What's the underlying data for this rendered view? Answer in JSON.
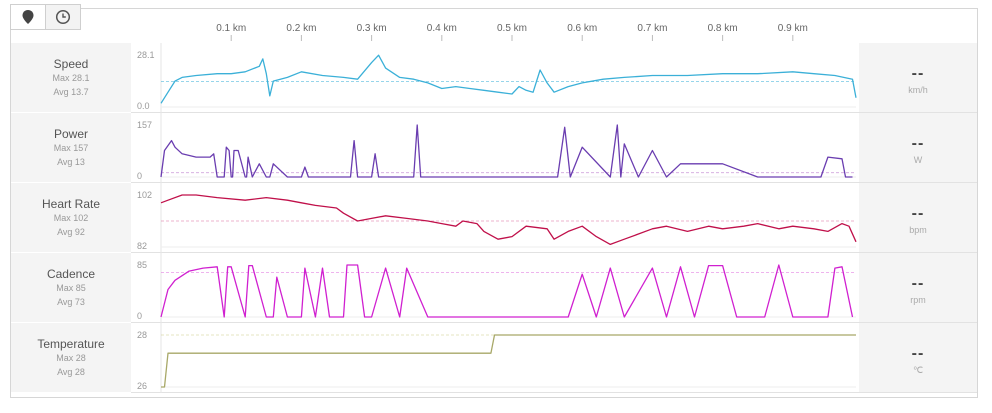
{
  "toolbar": {
    "items": [
      {
        "icon": "location-pin-icon"
      },
      {
        "icon": "clock-icon"
      }
    ]
  },
  "x_axis": {
    "ticks": [
      "0.1 km",
      "0.2 km",
      "0.3 km",
      "0.4 km",
      "0.5 km",
      "0.6 km",
      "0.7 km",
      "0.8 km",
      "0.9 km"
    ]
  },
  "panels": [
    {
      "name": "Speed",
      "max_label": "Max 28.1",
      "avg_label": "Avg 13.7",
      "ymax_label": "28.1",
      "ymin_label": "0.0",
      "current": "--",
      "unit": "km/h",
      "color": "#3bb0d8",
      "avg_color": "#3bb0d8"
    },
    {
      "name": "Power",
      "max_label": "Max 157",
      "avg_label": "Avg 13",
      "ymax_label": "157",
      "ymin_label": "0",
      "current": "--",
      "unit": "W",
      "color": "#6a3db0",
      "avg_color": "#c080d0"
    },
    {
      "name": "Heart Rate",
      "max_label": "Max 102",
      "avg_label": "Avg 92",
      "ymax_label": "102",
      "ymin_label": "82",
      "current": "--",
      "unit": "bpm",
      "color": "#c0104a",
      "avg_color": "#e070a0"
    },
    {
      "name": "Cadence",
      "max_label": "Max 85",
      "avg_label": "Avg 73",
      "ymax_label": "85",
      "ymin_label": "0",
      "current": "--",
      "unit": "rpm",
      "color": "#d020d0",
      "avg_color": "#e070e0"
    },
    {
      "name": "Temperature",
      "max_label": "Max 28",
      "avg_label": "Avg 28",
      "ymax_label": "28",
      "ymin_label": "26",
      "current": "--",
      "unit": "℃",
      "color": "#a8a868",
      "avg_color": "#cccc88"
    }
  ],
  "chart_data": [
    {
      "type": "line",
      "title": "Speed",
      "ylabel": "km/h",
      "ylim": [
        0,
        28.1
      ],
      "xlim": [
        0,
        0.99
      ],
      "avg": 13.7,
      "x": [
        0,
        0.01,
        0.02,
        0.03,
        0.05,
        0.08,
        0.1,
        0.12,
        0.14,
        0.145,
        0.15,
        0.155,
        0.16,
        0.18,
        0.2,
        0.23,
        0.26,
        0.28,
        0.3,
        0.31,
        0.32,
        0.34,
        0.36,
        0.38,
        0.4,
        0.42,
        0.44,
        0.46,
        0.48,
        0.5,
        0.51,
        0.52,
        0.53,
        0.54,
        0.55,
        0.56,
        0.58,
        0.6,
        0.63,
        0.66,
        0.7,
        0.75,
        0.8,
        0.85,
        0.9,
        0.93,
        0.96,
        0.985,
        0.99
      ],
      "y": [
        2,
        8,
        14,
        16,
        17,
        18,
        18,
        19,
        22,
        26,
        18,
        6,
        14,
        16,
        19,
        17,
        16,
        15,
        24,
        28,
        21,
        16,
        15,
        13,
        10,
        11,
        10,
        9,
        8,
        7,
        11,
        9,
        8,
        20,
        13,
        8,
        11,
        13,
        15,
        16,
        17,
        17,
        18,
        18,
        19,
        18,
        17,
        15,
        5
      ]
    },
    {
      "type": "line",
      "title": "Power",
      "ylabel": "W",
      "ylim": [
        0,
        157
      ],
      "xlim": [
        0,
        0.99
      ],
      "avg": 13,
      "x": [
        0,
        0.005,
        0.015,
        0.02,
        0.03,
        0.05,
        0.07,
        0.075,
        0.08,
        0.09,
        0.093,
        0.097,
        0.1,
        0.102,
        0.104,
        0.11,
        0.12,
        0.122,
        0.124,
        0.13,
        0.14,
        0.15,
        0.155,
        0.16,
        0.18,
        0.2,
        0.205,
        0.21,
        0.27,
        0.275,
        0.28,
        0.3,
        0.305,
        0.31,
        0.36,
        0.365,
        0.37,
        0.4,
        0.565,
        0.575,
        0.583,
        0.6,
        0.64,
        0.65,
        0.655,
        0.66,
        0.68,
        0.7,
        0.72,
        0.74,
        0.8,
        0.85,
        0.94,
        0.95,
        0.97,
        0.975,
        0.985
      ],
      "y": [
        0,
        80,
        110,
        90,
        70,
        60,
        60,
        70,
        0,
        0,
        90,
        80,
        0,
        0,
        80,
        80,
        0,
        0,
        60,
        0,
        40,
        0,
        0,
        40,
        0,
        0,
        30,
        0,
        0,
        110,
        0,
        0,
        70,
        0,
        0,
        157,
        0,
        0,
        0,
        150,
        0,
        90,
        0,
        157,
        0,
        100,
        0,
        80,
        0,
        40,
        40,
        0,
        0,
        60,
        55,
        0,
        0
      ]
    },
    {
      "type": "line",
      "title": "Heart Rate",
      "ylabel": "bpm",
      "ylim": [
        82,
        102
      ],
      "xlim": [
        0,
        0.99
      ],
      "avg": 92,
      "x": [
        0,
        0.01,
        0.03,
        0.05,
        0.08,
        0.12,
        0.15,
        0.18,
        0.2,
        0.22,
        0.25,
        0.26,
        0.28,
        0.3,
        0.32,
        0.35,
        0.38,
        0.4,
        0.42,
        0.43,
        0.45,
        0.46,
        0.48,
        0.5,
        0.52,
        0.55,
        0.56,
        0.58,
        0.6,
        0.62,
        0.64,
        0.66,
        0.68,
        0.7,
        0.72,
        0.75,
        0.78,
        0.8,
        0.83,
        0.85,
        0.88,
        0.9,
        0.93,
        0.95,
        0.97,
        0.98,
        0.99
      ],
      "y": [
        99,
        100,
        102,
        102,
        101,
        100,
        101,
        100,
        99,
        98,
        97,
        95,
        92,
        93,
        94,
        93,
        92,
        91,
        90,
        92,
        91,
        88,
        85,
        86,
        90,
        89,
        85,
        88,
        90,
        86,
        83,
        85,
        87,
        89,
        90,
        88,
        90,
        89,
        90,
        91,
        89,
        90,
        89,
        88,
        91,
        90,
        84
      ]
    },
    {
      "type": "line",
      "title": "Cadence",
      "ylabel": "rpm",
      "ylim": [
        0,
        85
      ],
      "xlim": [
        0,
        0.99
      ],
      "avg": 73,
      "x": [
        0,
        0.01,
        0.02,
        0.04,
        0.06,
        0.08,
        0.09,
        0.095,
        0.1,
        0.12,
        0.125,
        0.13,
        0.15,
        0.16,
        0.165,
        0.18,
        0.2,
        0.205,
        0.22,
        0.23,
        0.24,
        0.26,
        0.265,
        0.28,
        0.29,
        0.3,
        0.32,
        0.34,
        0.35,
        0.38,
        0.4,
        0.5,
        0.58,
        0.6,
        0.62,
        0.64,
        0.66,
        0.7,
        0.72,
        0.74,
        0.76,
        0.78,
        0.8,
        0.82,
        0.84,
        0.86,
        0.88,
        0.9,
        0.92,
        0.93,
        0.95,
        0.96,
        0.97,
        0.985
      ],
      "y": [
        0,
        45,
        60,
        75,
        80,
        82,
        0,
        82,
        82,
        0,
        84,
        84,
        0,
        0,
        65,
        0,
        0,
        80,
        0,
        80,
        0,
        0,
        85,
        85,
        0,
        0,
        80,
        0,
        80,
        0,
        0,
        0,
        0,
        70,
        0,
        80,
        0,
        80,
        0,
        82,
        0,
        84,
        84,
        0,
        0,
        0,
        85,
        0,
        0,
        0,
        0,
        80,
        82,
        0
      ]
    },
    {
      "type": "line",
      "title": "Temperature",
      "ylabel": "℃",
      "ylim": [
        26,
        28
      ],
      "xlim": [
        0,
        0.99
      ],
      "avg": 28,
      "x": [
        0,
        0.005,
        0.01,
        0.47,
        0.475,
        0.99
      ],
      "y": [
        26,
        26,
        27.3,
        27.3,
        28,
        28
      ]
    }
  ]
}
